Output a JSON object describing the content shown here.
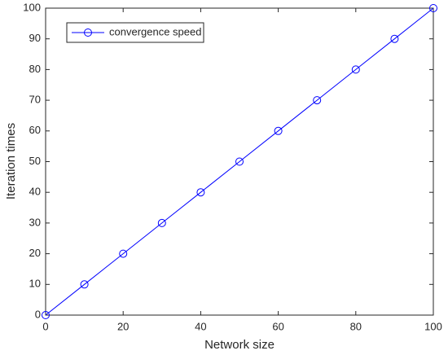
{
  "chart_data": {
    "type": "line",
    "x_label": "Network size",
    "y_label": "Iteration times",
    "x": [
      0,
      10,
      20,
      30,
      40,
      50,
      60,
      70,
      80,
      90,
      100
    ],
    "series": [
      {
        "name": "convergence speed",
        "color": "#0000ff",
        "values": [
          0,
          10,
          20,
          30,
          40,
          50,
          60,
          70,
          80,
          90,
          100
        ]
      }
    ],
    "xlim": [
      0,
      100
    ],
    "xticks": [
      0,
      20,
      40,
      60,
      80,
      100
    ],
    "ylim": [
      0,
      100
    ],
    "yticks": [
      0,
      10,
      20,
      30,
      40,
      50,
      60,
      70,
      80,
      90,
      100
    ],
    "legend": "upper-left",
    "marker": "circle"
  }
}
